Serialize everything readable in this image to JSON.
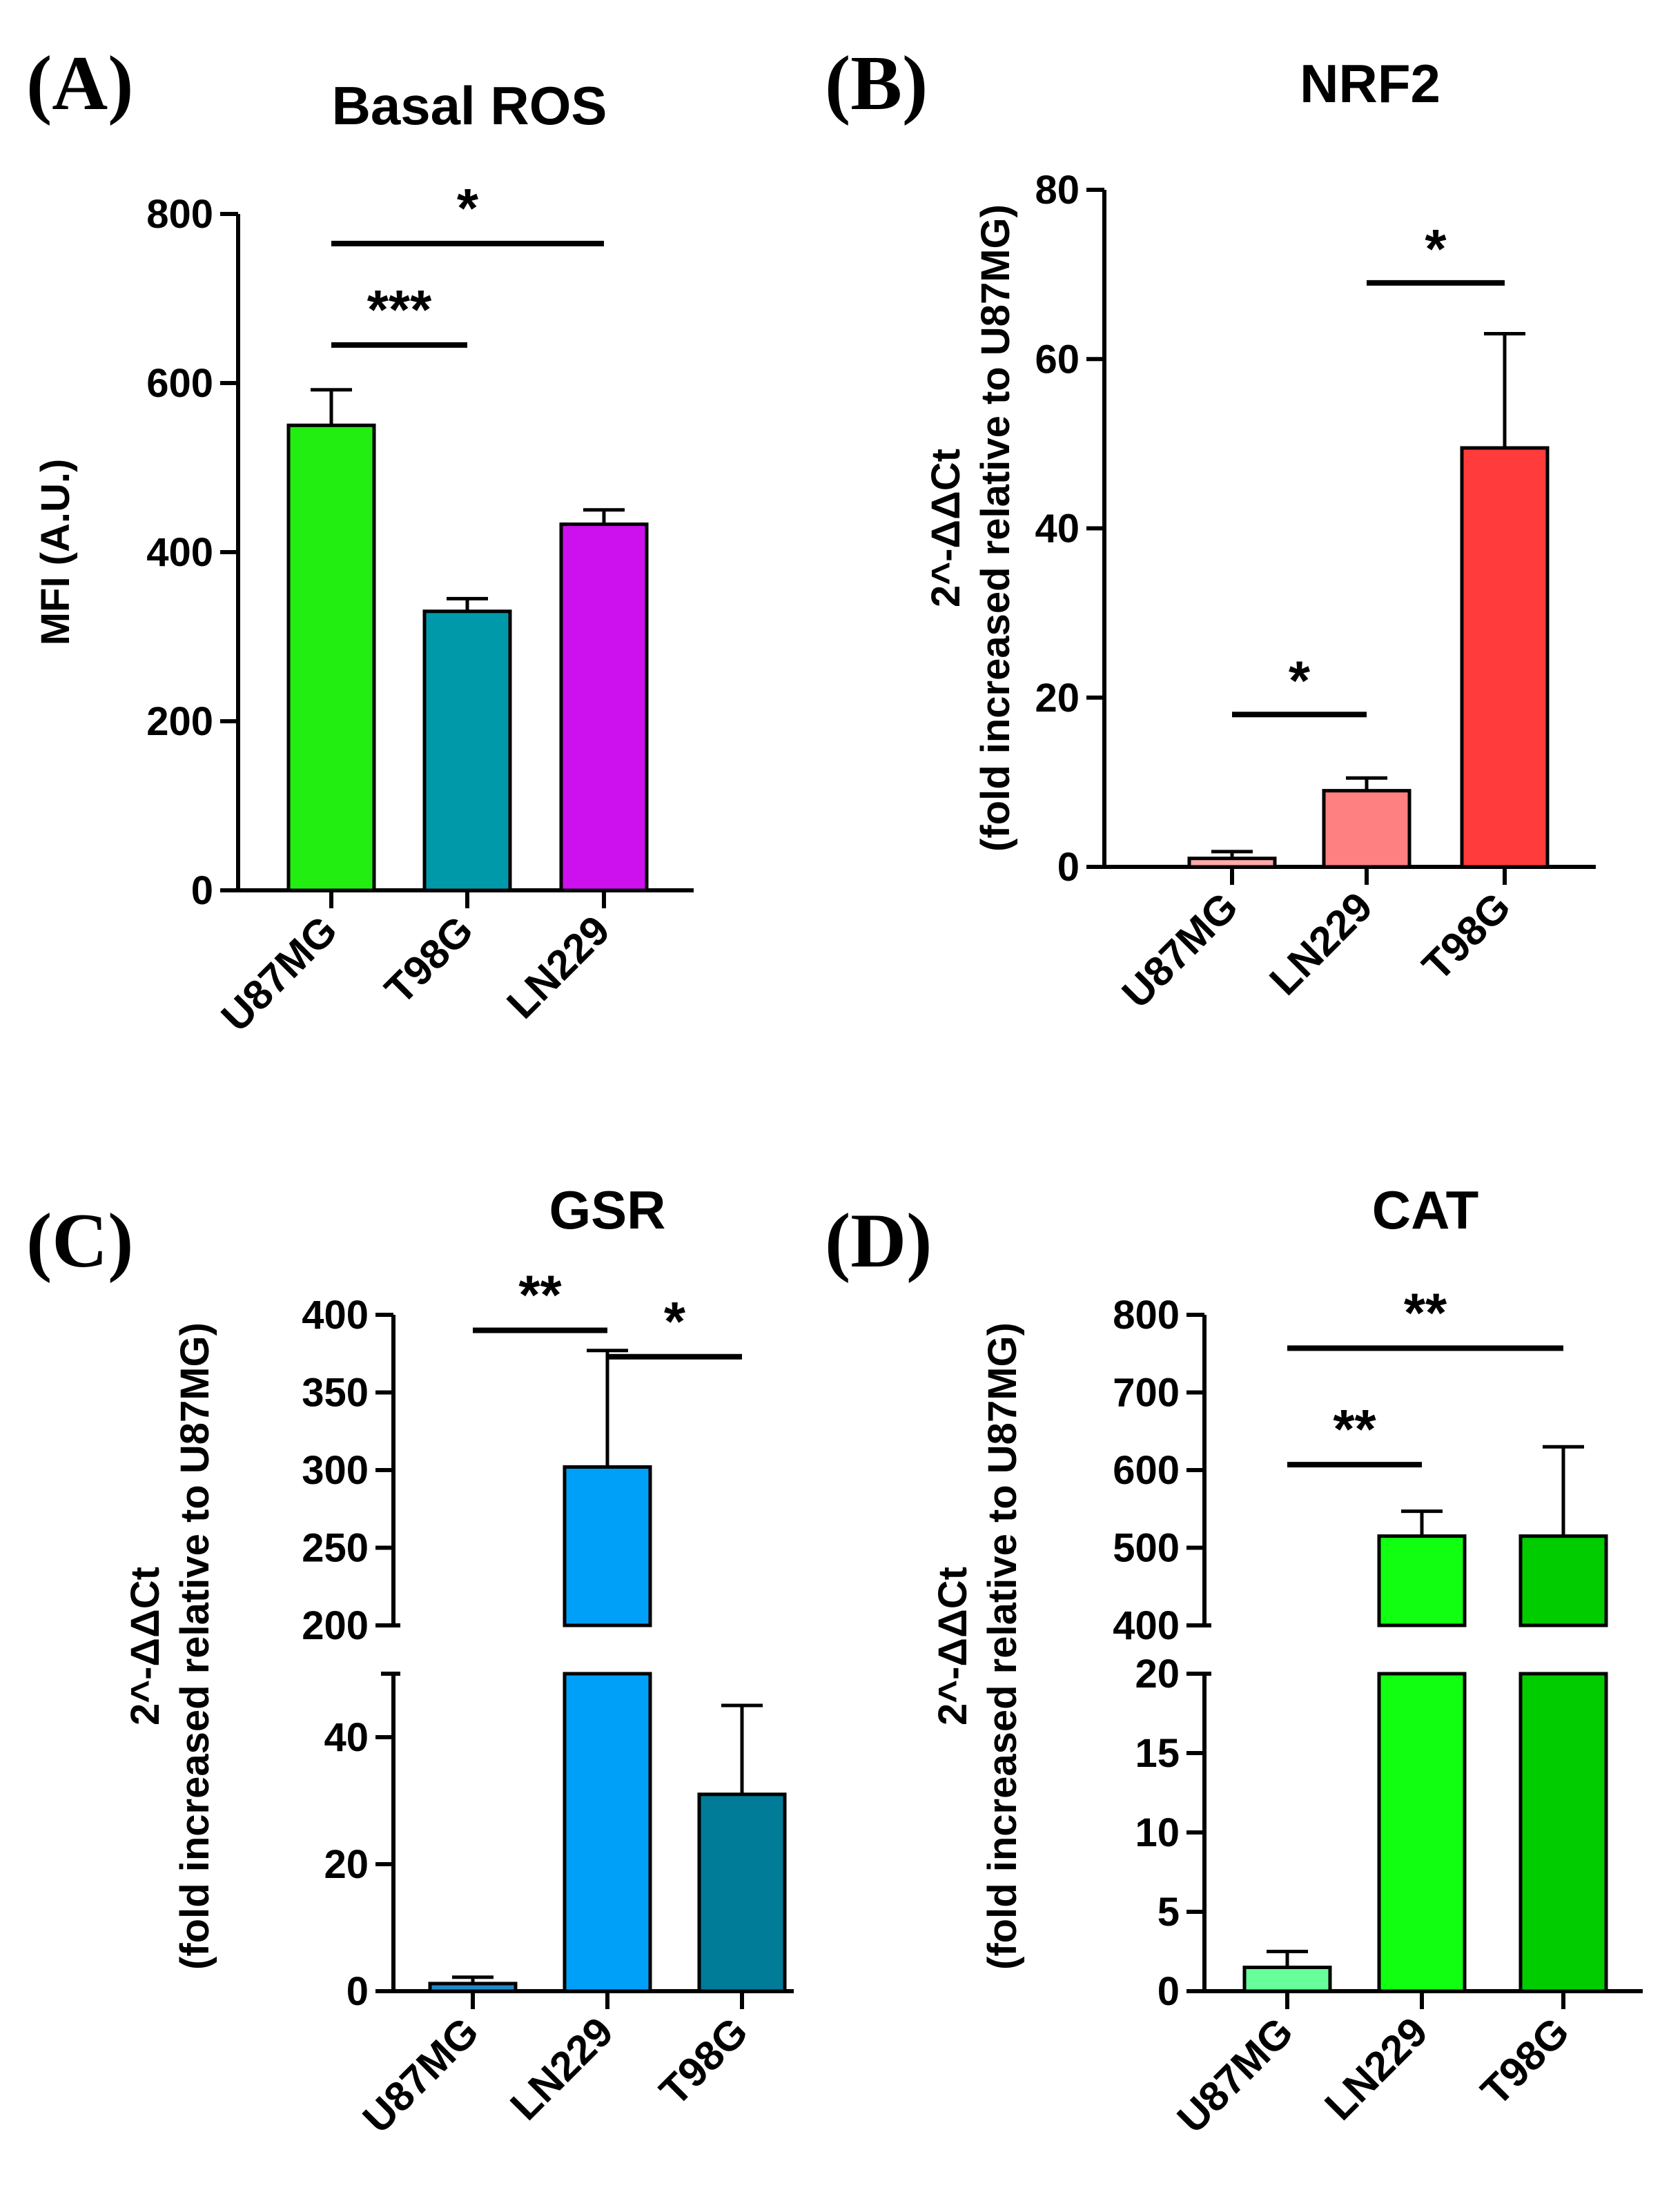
{
  "chart_data": [
    {
      "type": "bar",
      "panel_label": "(A)",
      "title": "Basal ROS",
      "ylabel_lines": [
        "MFI (A.U.)"
      ],
      "categories": [
        "U87MG",
        "T98G",
        "LN229"
      ],
      "values": [
        550,
        330,
        433
      ],
      "errors": [
        42,
        15,
        17
      ],
      "colors": [
        "#22ee11",
        "#0099aa",
        "#cc11ee"
      ],
      "ylim": [
        0,
        800
      ],
      "yticks": [
        0,
        200,
        400,
        600,
        800
      ],
      "significance": [
        {
          "from": 0,
          "to": 2,
          "label": "*",
          "y": 765
        },
        {
          "from": 0,
          "to": 1,
          "label": "***",
          "y": 645
        }
      ]
    },
    {
      "type": "bar",
      "panel_label": "(B)",
      "title": "NRF2",
      "ylabel_lines": [
        "2^-ΔΔCt",
        "(fold increased relative to U87MG)"
      ],
      "categories": [
        "U87MG",
        "LN229",
        "T98G"
      ],
      "values": [
        1,
        9,
        49.5
      ],
      "errors": [
        0.8,
        1.5,
        13.5
      ],
      "colors": [
        "#ffaaaa",
        "#ff8080",
        "#ff3b3b"
      ],
      "ylim": [
        0,
        80
      ],
      "yticks": [
        0,
        20,
        40,
        60,
        80
      ],
      "significance": [
        {
          "from": 0,
          "to": 1,
          "label": "*",
          "y": 18
        },
        {
          "from": 1,
          "to": 2,
          "label": "*",
          "y": 69
        }
      ]
    },
    {
      "type": "bar",
      "panel_label": "(C)",
      "title": "GSR",
      "ylabel_lines": [
        "2^-ΔΔCt",
        "(fold increased relative to U87MG)"
      ],
      "categories": [
        "U87MG",
        "LN229",
        "T98G"
      ],
      "values": [
        1.2,
        302,
        31
      ],
      "errors": [
        1,
        75,
        14
      ],
      "colors": [
        "#2288cc",
        "#00a0f8",
        "#007b98"
      ],
      "broken_axis": {
        "lower": [
          0,
          50
        ],
        "upper": [
          200,
          400
        ]
      },
      "yticks_lower": [
        0,
        20,
        40
      ],
      "yticks_upper": [
        200,
        250,
        300,
        350,
        400
      ],
      "significance": [
        {
          "from": 0,
          "to": 1,
          "label": "**",
          "y": 390
        },
        {
          "from": 1,
          "to": 2,
          "label": "*",
          "y": 373
        }
      ]
    },
    {
      "type": "bar",
      "panel_label": "(D)",
      "title": "CAT",
      "ylabel_lines": [
        "2^-ΔΔCt",
        "(fold increased relative to U87MG)"
      ],
      "categories": [
        "U87MG",
        "LN229",
        "T98G"
      ],
      "values": [
        1.5,
        515,
        515
      ],
      "errors": [
        1,
        32,
        115
      ],
      "colors": [
        "#66ff99",
        "#11ff11",
        "#00cc00"
      ],
      "broken_axis": {
        "lower": [
          0,
          20
        ],
        "upper": [
          400,
          800
        ]
      },
      "yticks_lower": [
        0,
        5,
        10,
        15,
        20
      ],
      "yticks_upper": [
        400,
        500,
        600,
        700,
        800
      ],
      "significance": [
        {
          "from": 0,
          "to": 2,
          "label": "**",
          "y": 757
        },
        {
          "from": 0,
          "to": 1,
          "label": "**",
          "y": 607
        }
      ]
    }
  ]
}
